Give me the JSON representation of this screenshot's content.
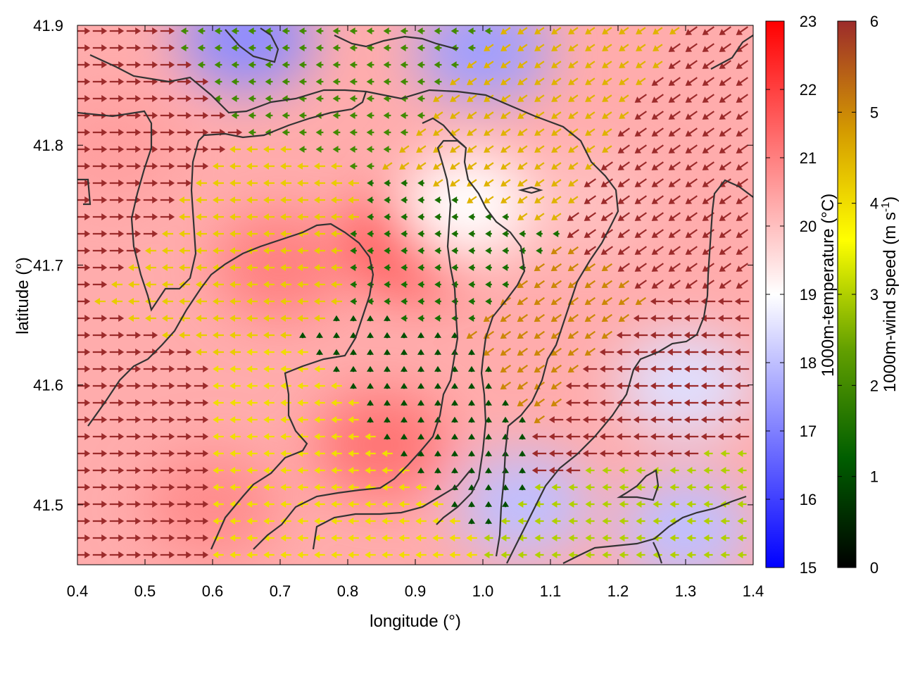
{
  "chart_data": {
    "type": "heatmap",
    "title": "",
    "xlabel": "longitude (°)",
    "ylabel": "latitude (°)",
    "xlim": [
      0.4,
      1.4
    ],
    "ylim": [
      41.45,
      41.9
    ],
    "xticks": [
      "0.4",
      "0.5",
      "0.6",
      "0.7",
      "0.8",
      "0.9",
      "1.0",
      "1.1",
      "1.2",
      "1.3",
      "1.4"
    ],
    "yticks": [
      "41.5",
      "41.6",
      "41.7",
      "41.8",
      "41.9"
    ],
    "grid": false,
    "temperature": {
      "label": "1000m-temperature (°C)",
      "range": [
        15,
        23
      ],
      "ticks": [
        "15",
        "16",
        "17",
        "18",
        "19",
        "20",
        "21",
        "22",
        "23"
      ],
      "colors": [
        "#0000ff",
        "#ffffff",
        "#ff0000"
      ],
      "regions": [
        {
          "lon": 0.45,
          "lat": 41.8,
          "value": 20.5
        },
        {
          "lon": 0.7,
          "lat": 41.7,
          "value": 21.0
        },
        {
          "lon": 0.9,
          "lat": 41.72,
          "value": 21.8
        },
        {
          "lon": 0.85,
          "lat": 41.55,
          "value": 21.2
        },
        {
          "lon": 0.6,
          "lat": 41.5,
          "value": 20.8
        },
        {
          "lon": 0.98,
          "lat": 41.75,
          "value": 19.0
        },
        {
          "lon": 1.0,
          "lat": 41.88,
          "value": 17.5
        },
        {
          "lon": 0.65,
          "lat": 41.89,
          "value": 17.2
        },
        {
          "lon": 1.06,
          "lat": 41.5,
          "value": 18.0
        },
        {
          "lon": 1.15,
          "lat": 41.75,
          "value": 20.0
        },
        {
          "lon": 1.3,
          "lat": 41.6,
          "value": 18.5
        },
        {
          "lon": 1.3,
          "lat": 41.48,
          "value": 18.0
        }
      ]
    },
    "wind_speed": {
      "label": "1000m-wind speed (m s",
      "label_exponent": "-1",
      "label_end": ")",
      "range": [
        0,
        6
      ],
      "ticks": [
        "0",
        "1",
        "2",
        "3",
        "4",
        "5",
        "6"
      ],
      "colors": [
        "#000000",
        "#005e00",
        "#63a000",
        "#ffff00",
        "#d49a00",
        "#9c2b2b"
      ],
      "regions": [
        {
          "lon": 0.45,
          "lat": 41.78,
          "speed": 6.0,
          "direction": "east"
        },
        {
          "lon": 0.45,
          "lat": 41.55,
          "speed": 6.0,
          "direction": "east"
        },
        {
          "lon": 0.65,
          "lat": 41.72,
          "speed": 4.2,
          "direction": "west"
        },
        {
          "lon": 0.75,
          "lat": 41.55,
          "speed": 4.0,
          "direction": "west"
        },
        {
          "lon": 0.9,
          "lat": 41.6,
          "speed": 1.0,
          "direction": "north"
        },
        {
          "lon": 0.95,
          "lat": 41.7,
          "speed": 1.5,
          "direction": "west"
        },
        {
          "lon": 0.8,
          "lat": 41.87,
          "speed": 2.0,
          "direction": "west"
        },
        {
          "lon": 1.05,
          "lat": 41.8,
          "speed": 4.5,
          "direction": "southwest"
        },
        {
          "lon": 1.1,
          "lat": 41.65,
          "speed": 5.0,
          "direction": "southwest"
        },
        {
          "lon": 1.27,
          "lat": 41.75,
          "speed": 6.0,
          "direction": "southwest"
        },
        {
          "lon": 1.25,
          "lat": 41.6,
          "speed": 6.0,
          "direction": "west"
        },
        {
          "lon": 1.3,
          "lat": 41.48,
          "speed": 3.0,
          "direction": "west"
        }
      ]
    }
  }
}
